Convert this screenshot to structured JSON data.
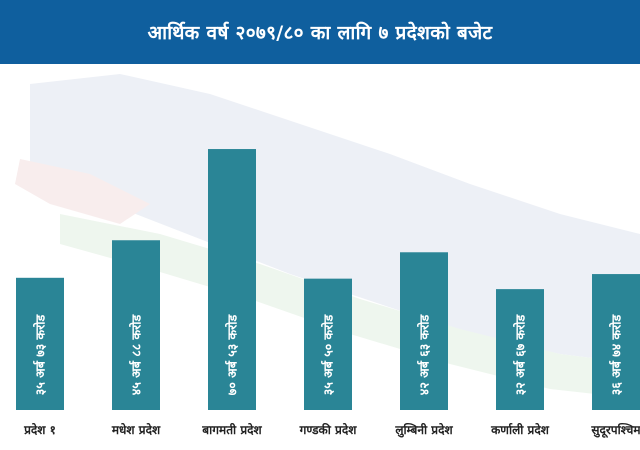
{
  "title": "आर्थिक वर्ष २०७९/८० का लागि ७ प्रदेशको बजेट",
  "colors": {
    "title_bg": "#0f5f9e",
    "bar": "#2a8596",
    "label": "#ffffff"
  },
  "chart_data": {
    "type": "bar",
    "title": "आर्थिक वर्ष २०७९/८० का लागि ७ प्रदेशको बजेट",
    "xlabel": "",
    "ylabel": "",
    "unit": "अर्ब",
    "categories": [
      "प्रदेश १",
      "मधेश प्रदेश",
      "बागमती प्रदेश",
      "गण्डकी प्रदेश",
      "लुम्बिनी प्रदेश",
      "कर्णाली प्रदेश",
      "सुदूरपश्चिम"
    ],
    "values": [
      35.73,
      45.88,
      70.53,
      35.5,
      42.63,
      32.67,
      36.74
    ],
    "data_labels": [
      "३५ अर्ब ७३ करोड",
      "४५ अर्ब ८८ करोड",
      "७० अर्ब ५३ करोड",
      "३५ अर्ब ५० करोड",
      "४२ अर्ब ६३ करोड",
      "३२ अर्ब ६७ करोड",
      "३६ अर्ब ७४ करोड"
    ],
    "ylim": [
      0,
      80
    ],
    "grid": false,
    "legend": "none"
  }
}
